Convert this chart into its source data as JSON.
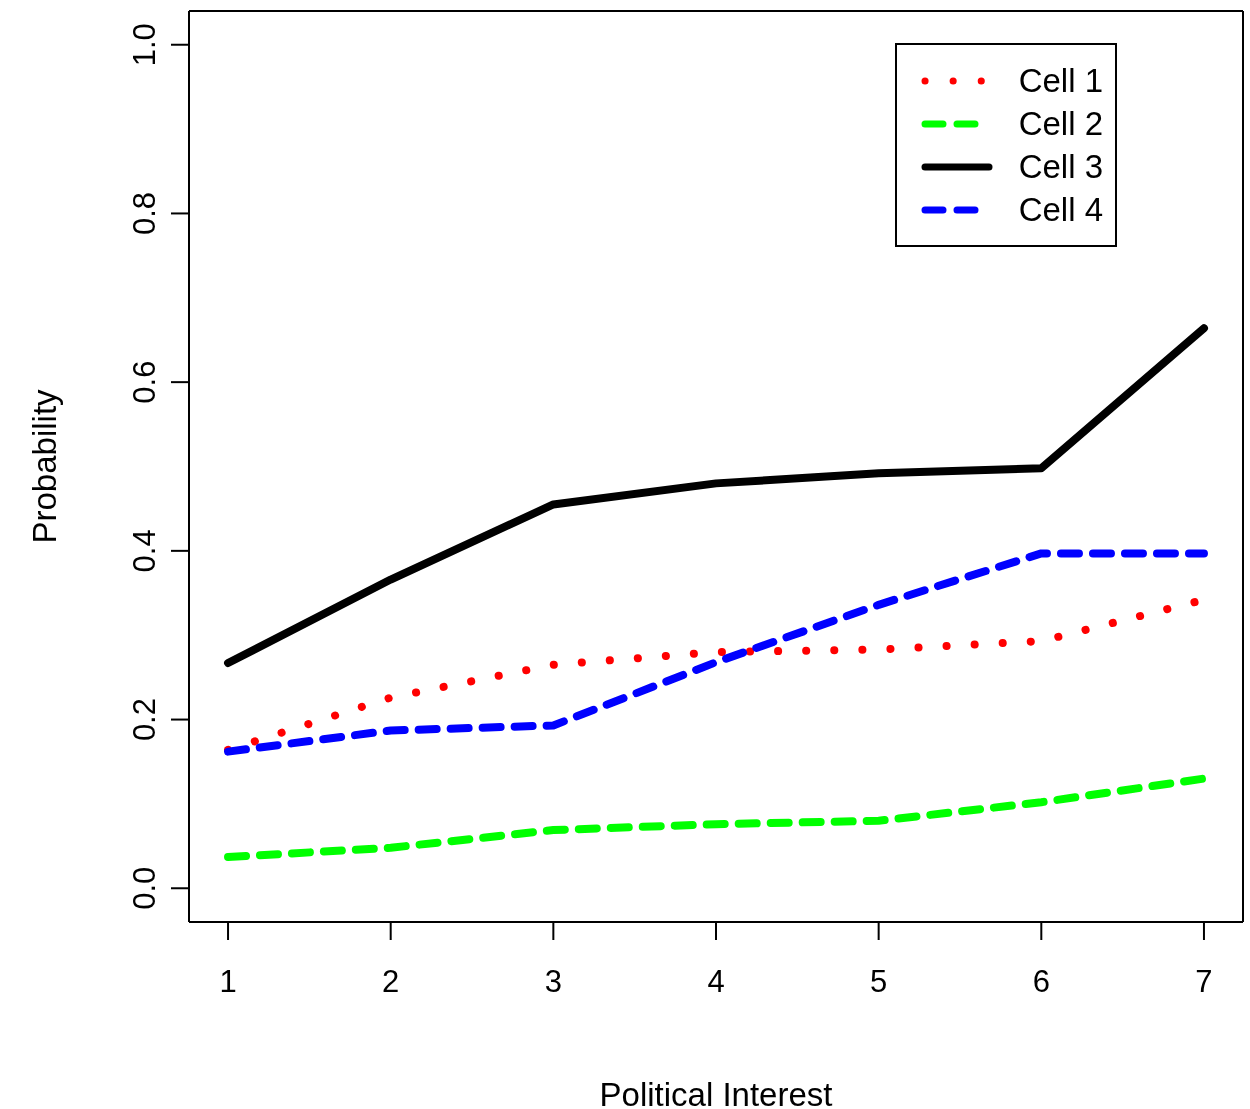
{
  "chart_data": {
    "type": "line",
    "xlabel": "Political Interest",
    "ylabel": "Probability",
    "x": [
      1,
      2,
      3,
      4,
      5,
      6,
      7
    ],
    "xlim": [
      0.76,
      7.24
    ],
    "xticks": [
      1,
      2,
      3,
      4,
      5,
      6,
      7
    ],
    "ylim": [
      -0.04,
      1.04
    ],
    "yticks": [
      {
        "value": 0,
        "label": "0.0"
      },
      {
        "value": 0.2,
        "label": "0.2"
      },
      {
        "value": 0.4,
        "label": "0.4"
      },
      {
        "value": 0.6,
        "label": "0.6"
      },
      {
        "value": 0.8,
        "label": "0.8"
      },
      {
        "value": 1,
        "label": "1.0"
      }
    ],
    "series": [
      {
        "name": "Cell 1",
        "color": "#ff0000",
        "line_style": "dotted",
        "values": [
          0.164,
          0.226,
          0.265,
          0.28,
          0.283,
          0.293,
          0.342
        ]
      },
      {
        "name": "Cell 2",
        "color": "#00ff00",
        "line_style": "dashed",
        "values": [
          0.037,
          0.048,
          0.069,
          0.076,
          0.08,
          0.102,
          0.13
        ]
      },
      {
        "name": "Cell 3",
        "color": "#000000",
        "line_style": "solid",
        "values": [
          0.267,
          0.366,
          0.455,
          0.48,
          0.492,
          0.498,
          0.664
        ]
      },
      {
        "name": "Cell 4",
        "color": "#0000ff",
        "line_style": "dashed",
        "values": [
          0.162,
          0.187,
          0.193,
          0.268,
          0.336,
          0.397,
          0.397
        ]
      }
    ],
    "grid": false,
    "legend": "top right",
    "marker": "none"
  }
}
